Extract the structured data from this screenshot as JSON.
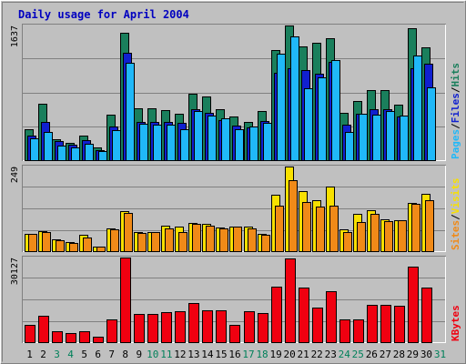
{
  "chart_data": {
    "type": "bar",
    "title": "Daily usage for April 2004",
    "categories": [
      "1",
      "2",
      "3",
      "4",
      "5",
      "6",
      "7",
      "8",
      "9",
      "10",
      "11",
      "12",
      "13",
      "14",
      "15",
      "16",
      "17",
      "18",
      "19",
      "20",
      "21",
      "22",
      "23",
      "24",
      "25",
      "26",
      "27",
      "28",
      "29",
      "30",
      "31"
    ],
    "weekend_days": [
      3,
      4,
      10,
      11,
      17,
      18,
      24,
      25,
      31
    ],
    "panels": [
      {
        "id": "hits-files-pages",
        "ymax": 1637,
        "ytick_label": "1637",
        "axis_labels": [
          "Pages",
          "/",
          "Files",
          "/",
          "Hits"
        ],
        "series": [
          {
            "name": "Hits",
            "color": "#1a7f5c",
            "values": [
              380,
              690,
              250,
              210,
              300,
              150,
              550,
              1550,
              630,
              630,
              610,
              560,
              810,
              770,
              620,
              530,
              460,
              600,
              1337,
              1637,
              1380,
              1430,
              1480,
              580,
              720,
              850,
              850,
              680,
              1600,
              1370,
              0
            ]
          },
          {
            "name": "Files",
            "color": "#1020d0",
            "values": [
              300,
              470,
              230,
              190,
              240,
              120,
              410,
              1300,
              470,
              470,
              470,
              450,
              620,
              580,
              490,
              420,
              400,
              480,
              1060,
              1120,
              1100,
              1050,
              1200,
              430,
              560,
              620,
              620,
              530,
              1120,
              1170,
              0
            ]
          },
          {
            "name": "Pages",
            "color": "#20b8f8",
            "values": [
              260,
              340,
              180,
              150,
              200,
              110,
              370,
              1180,
              440,
              430,
              430,
              380,
              600,
              540,
              510,
              380,
              410,
              450,
              1290,
              1500,
              870,
              1010,
              1220,
              340,
              560,
              550,
              600,
              540,
              1270,
              880,
              0
            ]
          }
        ]
      },
      {
        "id": "visits-sites",
        "ymax": 249,
        "ytick_label": "249",
        "axis_labels": [
          "Sites",
          "/",
          "Visits"
        ],
        "series": [
          {
            "name": "Visits",
            "color": "#f8e000",
            "values": [
              50,
              58,
              36,
              28,
              47,
              14,
              67,
              118,
              56,
              57,
              76,
              72,
              84,
              81,
              70,
              72,
              71,
              50,
              166,
              249,
              176,
              150,
              190,
              65,
              110,
              120,
              95,
              92,
              143,
              170,
              0
            ]
          },
          {
            "name": "Sites",
            "color": "#f08a18",
            "values": [
              50,
              55,
              32,
              25,
              40,
              13,
              65,
              113,
              54,
              55,
              68,
              55,
              80,
              75,
              66,
              72,
              67,
              47,
              133,
              210,
              145,
              130,
              135,
              56,
              86,
              111,
              88,
              90,
              140,
              150,
              0
            ]
          }
        ]
      },
      {
        "id": "kbytes",
        "ymax": 30127,
        "ytick_label": "30127",
        "axis_labels": [
          "KBytes"
        ],
        "series": [
          {
            "name": "KBytes",
            "color": "#f00010",
            "values": [
              6000,
              9500,
              3800,
              3300,
              4000,
              2100,
              8100,
              30127,
              10200,
              10200,
              10600,
              11000,
              13800,
              11500,
              11500,
              6300,
              11000,
              10500,
              19700,
              29800,
              19500,
              12400,
              18000,
              8200,
              8200,
              13200,
              13400,
              12800,
              26800,
              19300,
              0
            ]
          }
        ]
      }
    ]
  }
}
